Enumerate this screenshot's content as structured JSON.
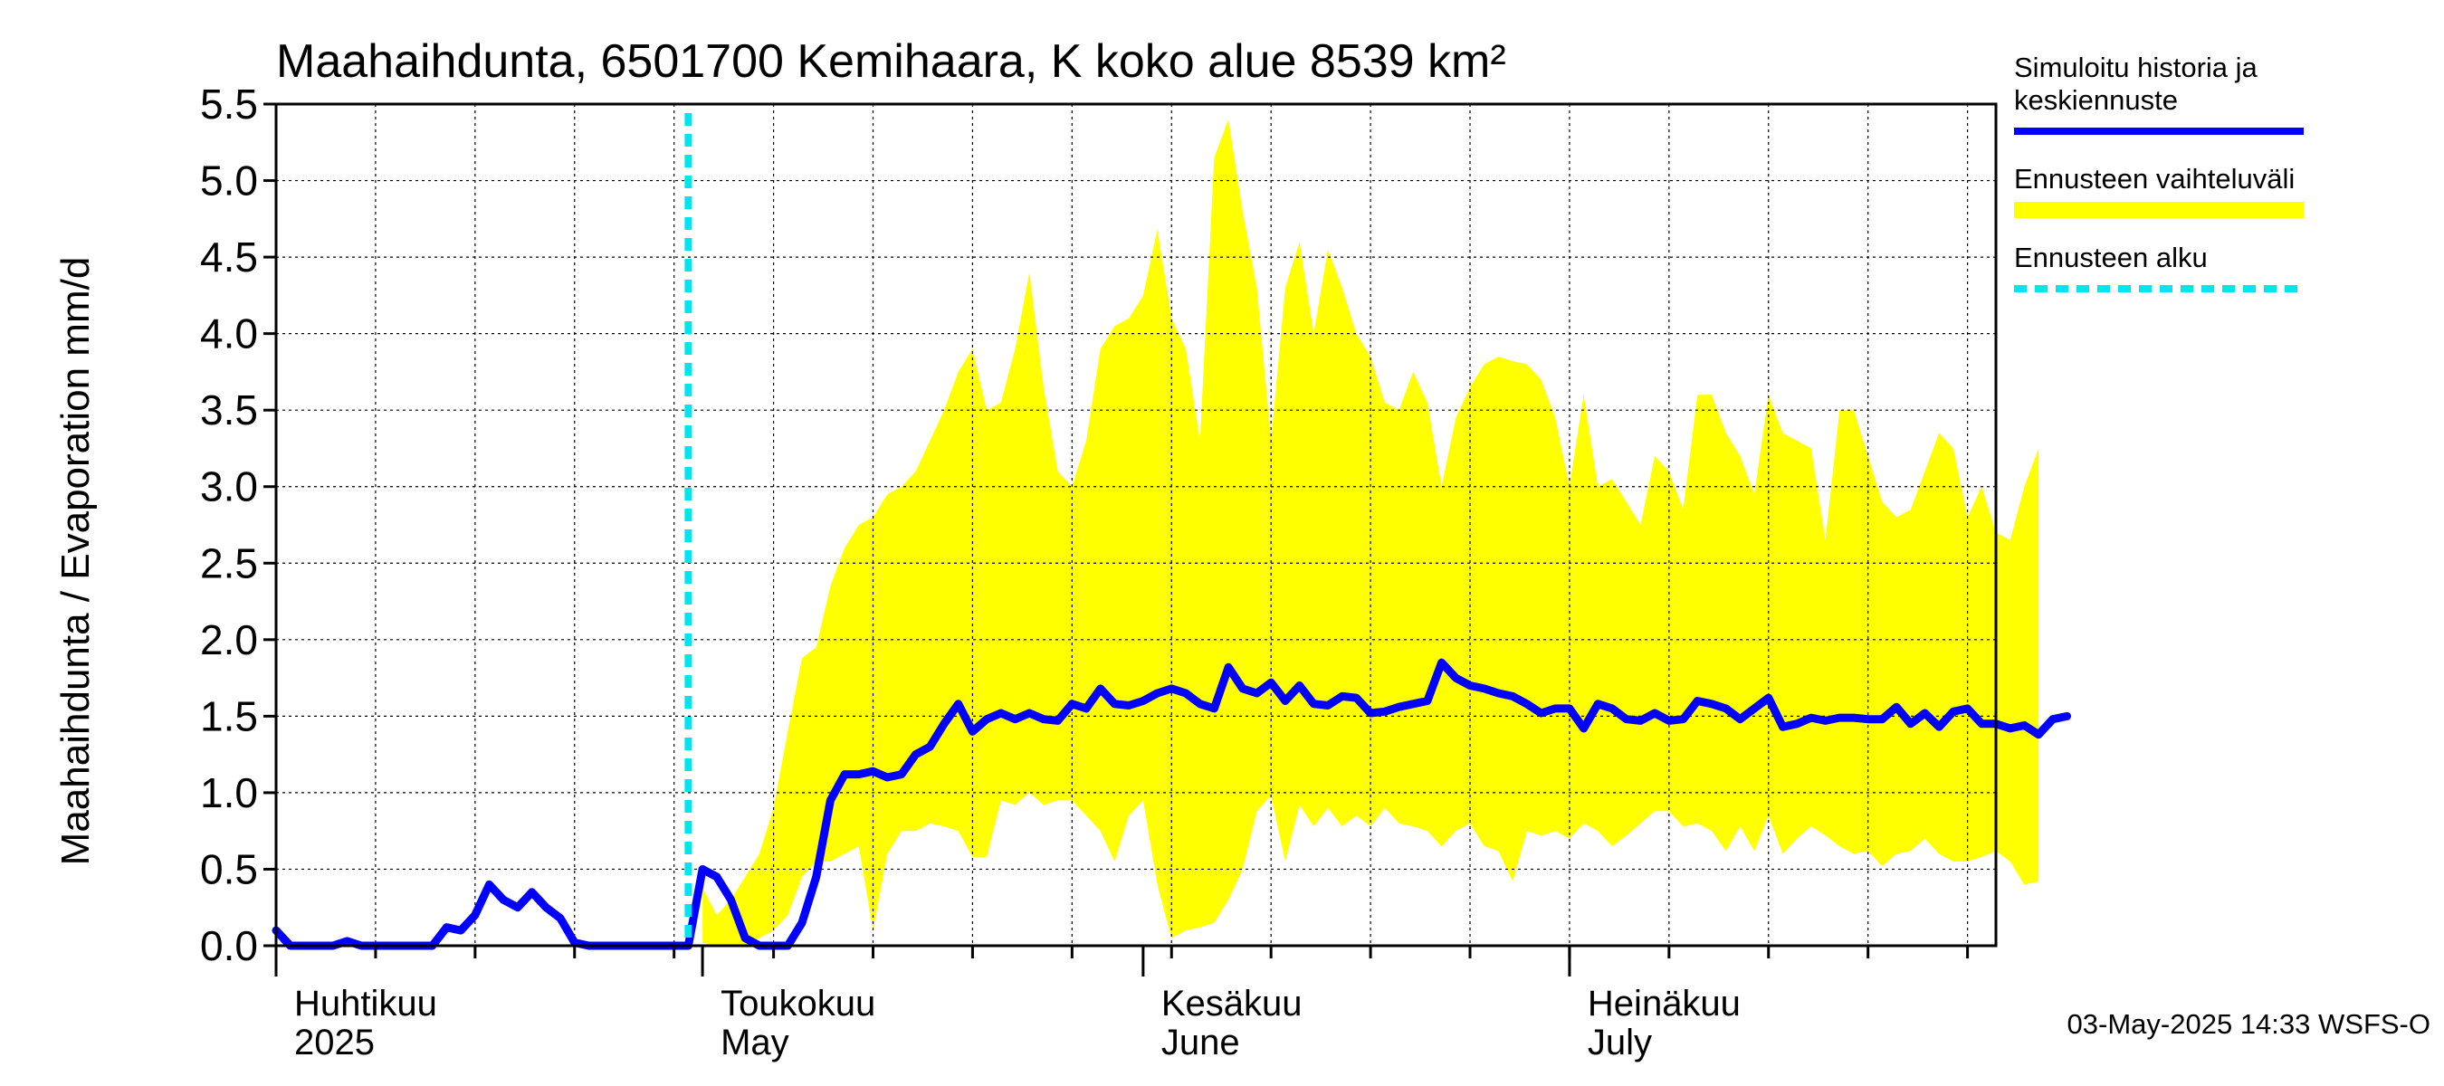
{
  "chart_data": {
    "type": "area",
    "title": "Maahaihdunta, 6501700 Kemihaara, K koko alue 8539 km²",
    "ylabel": "Maahaihdunta / Evaporation   mm/d",
    "ylim": [
      0,
      5.5
    ],
    "yticks": [
      "0.0",
      "0.5",
      "1.0",
      "1.5",
      "2.0",
      "2.5",
      "3.0",
      "3.5",
      "4.0",
      "4.5",
      "5.0",
      "5.5"
    ],
    "x_start": "2025-04-01",
    "x_end": "2025-07-31",
    "month_labels": [
      {
        "fi": "Huhtikuu",
        "en": "2025",
        "date": "2025-04-01"
      },
      {
        "fi": "Toukokuu",
        "en": "May",
        "date": "2025-05-01"
      },
      {
        "fi": "Kesäkuu",
        "en": "June",
        "date": "2025-06-01"
      },
      {
        "fi": "Heinäkuu",
        "en": "July",
        "date": "2025-07-01"
      }
    ],
    "forecast_start": "2025-04-30",
    "grid": true,
    "legend_position": "right",
    "series": [
      {
        "name": "Simuloitu historia ja keskiennuste",
        "color": "#0000ff",
        "x_start": "2025-04-01",
        "values": [
          0.1,
          0,
          0,
          0,
          0,
          0.03,
          0,
          0,
          0,
          0,
          0,
          0,
          0.12,
          0.1,
          0.2,
          0.4,
          0.3,
          0.25,
          0.35,
          0.25,
          0.18,
          0.02,
          0,
          0,
          0,
          0,
          0,
          0,
          0,
          0,
          0.5,
          0.45,
          0.3,
          0.05,
          0,
          0,
          0,
          0.15,
          0.45,
          0.95,
          1.12,
          1.12,
          1.14,
          1.1,
          1.12,
          1.25,
          1.3,
          1.45,
          1.58,
          1.4,
          1.48,
          1.52,
          1.48,
          1.52,
          1.48,
          1.47,
          1.58,
          1.55,
          1.68,
          1.58,
          1.57,
          1.6,
          1.65,
          1.68,
          1.65,
          1.58,
          1.55,
          1.82,
          1.68,
          1.65,
          1.72,
          1.6,
          1.7,
          1.58,
          1.57,
          1.63,
          1.62,
          1.52,
          1.53,
          1.56,
          1.58,
          1.6,
          1.85,
          1.75,
          1.7,
          1.68,
          1.65,
          1.63,
          1.58,
          1.52,
          1.55,
          1.55,
          1.42,
          1.58,
          1.55,
          1.48,
          1.47,
          1.52,
          1.47,
          1.48,
          1.6,
          1.58,
          1.55,
          1.48,
          1.55,
          1.62,
          1.43,
          1.45,
          1.49,
          1.47,
          1.49,
          1.49,
          1.48,
          1.48,
          1.56,
          1.45,
          1.52,
          1.43,
          1.53,
          1.55,
          1.45,
          1.45,
          1.42,
          1.44,
          1.38,
          1.48,
          1.5
        ]
      },
      {
        "name": "Ennusteen vaihteluväli",
        "color": "#ffff00",
        "x_start": "2025-05-01",
        "upper": [
          0.38,
          0.2,
          0.3,
          0.45,
          0.6,
          0.9,
          1.4,
          1.88,
          1.95,
          2.35,
          2.6,
          2.75,
          2.8,
          2.95,
          3.0,
          3.1,
          3.3,
          3.5,
          3.75,
          3.9,
          3.5,
          3.55,
          3.9,
          4.4,
          3.65,
          3.1,
          3.0,
          3.3,
          3.9,
          4.05,
          4.1,
          4.25,
          4.68,
          4.1,
          3.9,
          3.3,
          5.15,
          5.4,
          4.8,
          4.3,
          3.3,
          4.3,
          4.6,
          4.0,
          4.55,
          4.3,
          4.0,
          3.85,
          3.55,
          3.5,
          3.75,
          3.55,
          3.0,
          3.45,
          3.65,
          3.8,
          3.85,
          3.82,
          3.8,
          3.7,
          3.45,
          3.0,
          3.6,
          3.0,
          3.05,
          2.9,
          2.75,
          3.2,
          3.1,
          2.85,
          3.6,
          3.6,
          3.35,
          3.2,
          2.95,
          3.6,
          3.35,
          3.3,
          3.25,
          2.65,
          3.5,
          3.5,
          3.2,
          2.9,
          2.8,
          2.85,
          3.1,
          3.35,
          3.25,
          2.8,
          3.0,
          2.7,
          2.65,
          3.0,
          3.25
        ],
        "lower": [
          0.02,
          0,
          0,
          0,
          0.05,
          0.1,
          0.2,
          0.45,
          0.55,
          0.55,
          0.6,
          0.65,
          0.1,
          0.6,
          0.75,
          0.75,
          0.8,
          0.78,
          0.75,
          0.58,
          0.58,
          0.95,
          0.92,
          1.0,
          0.92,
          0.95,
          0.95,
          0.85,
          0.75,
          0.55,
          0.85,
          0.95,
          0.4,
          0.05,
          0.1,
          0.12,
          0.15,
          0.3,
          0.5,
          0.88,
          0.98,
          0.55,
          0.92,
          0.78,
          0.9,
          0.78,
          0.85,
          0.78,
          0.9,
          0.8,
          0.78,
          0.75,
          0.65,
          0.75,
          0.8,
          0.65,
          0.62,
          0.42,
          0.75,
          0.72,
          0.75,
          0.7,
          0.8,
          0.75,
          0.65,
          0.72,
          0.8,
          0.88,
          0.88,
          0.78,
          0.8,
          0.75,
          0.62,
          0.78,
          0.62,
          0.85,
          0.6,
          0.7,
          0.78,
          0.72,
          0.65,
          0.6,
          0.62,
          0.52,
          0.6,
          0.62,
          0.7,
          0.6,
          0.55,
          0.55,
          0.58,
          0.62,
          0.55,
          0.4,
          0.42
        ]
      },
      {
        "name": "Ennusteen alku",
        "color": "#00e5ee"
      }
    ]
  },
  "legend": {
    "items": [
      {
        "lines": [
          "Simuloitu historia ja",
          "keskiennuste"
        ],
        "color": "#0000ff",
        "style": "solid"
      },
      {
        "lines": [
          "Ennusteen vaihteluväli"
        ],
        "color": "#ffff00",
        "style": "solid"
      },
      {
        "lines": [
          "Ennusteen alku"
        ],
        "color": "#00e5ee",
        "style": "dashed"
      }
    ]
  },
  "footer": "03-May-2025 14:33 WSFS-O"
}
